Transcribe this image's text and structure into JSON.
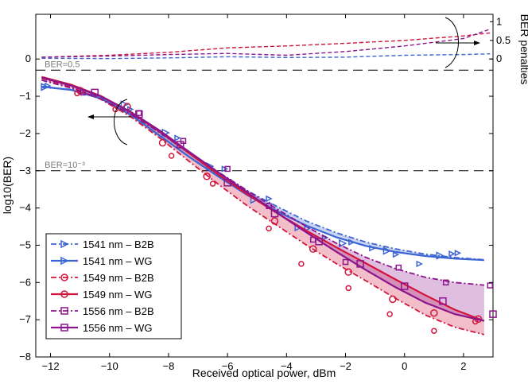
{
  "chart_data": {
    "type": "line",
    "xlabel": "Received optical power, dBm",
    "ylabel": "log10(BER)",
    "y2label": "BER penalties",
    "xlim": [
      -12.5,
      3
    ],
    "ylim": [
      -8,
      1.2
    ],
    "y2lim": [
      -0.58,
      1
    ],
    "xticks": [
      -12,
      -10,
      -8,
      -6,
      -4,
      -2,
      0,
      2
    ],
    "yticks": [
      0,
      -1,
      -2,
      -3,
      -4,
      -5,
      -6,
      -7,
      -8
    ],
    "y2ticks": [
      0,
      0.5,
      1
    ],
    "xtick_labels": [
      "−12",
      "−10",
      "−8",
      "−6",
      "−4",
      "−2",
      "0",
      "2"
    ],
    "ytick_labels": [
      "0",
      "−1",
      "−2",
      "−3",
      "−4",
      "−5",
      "−6",
      "−7",
      "−8"
    ],
    "y2tick_labels": [
      "0",
      "0.5",
      "1"
    ],
    "reference_lines": [
      {
        "y": -0.3,
        "label": "BER=0.5",
        "label_x": -12.2
      },
      {
        "y": -3.0,
        "label": "BER=10⁻³",
        "label_x": -12.2
      }
    ],
    "colors": {
      "c1541": "#3c64d2",
      "c1549": "#d2143c",
      "c1556": "#8c148c"
    },
    "series": [
      {
        "name": "1541 nm – B2B",
        "color_key": "c1541",
        "dash": "dashdot",
        "marker": "triangle-right",
        "x": [
          -12.3,
          -11.3,
          -10.3,
          -9.3,
          -8.3,
          -7.3,
          -6.3,
          -5.3,
          -4.3,
          -3.3,
          -2.3,
          -1.3,
          -0.3,
          0.7,
          1.7,
          2.7
        ],
        "y": [
          -0.76,
          -0.82,
          -1.02,
          -1.43,
          -1.98,
          -2.53,
          -3.05,
          -3.55,
          -3.97,
          -4.36,
          -4.67,
          -4.92,
          -5.1,
          -5.24,
          -5.33,
          -5.39
        ],
        "markers_x": [
          -12.1,
          -9.3,
          -7.7,
          -6.1,
          -4.6,
          -3.3,
          -2.7,
          -1.8,
          -1.1,
          -0.3,
          0.5,
          1.6,
          1.8
        ],
        "markers_y": [
          -0.72,
          -1.35,
          -2.12,
          -2.95,
          -3.75,
          -4.55,
          -4.79,
          -4.92,
          -5.08,
          -5.25,
          -5.5,
          -5.23,
          -5.21
        ]
      },
      {
        "name": "1541 nm – WG",
        "color_key": "c1541",
        "dash": "solid",
        "marker": "triangle-right",
        "x": [
          -12.3,
          -11.3,
          -10.3,
          -9.3,
          -8.3,
          -7.3,
          -6.3,
          -5.3,
          -4.3,
          -3.3,
          -2.3,
          -1.3,
          -0.3,
          0.7,
          1.7,
          2.7
        ],
        "y": [
          -0.74,
          -0.83,
          -1.06,
          -1.49,
          -2.06,
          -2.63,
          -3.16,
          -3.67,
          -4.1,
          -4.48,
          -4.79,
          -5.02,
          -5.18,
          -5.29,
          -5.36,
          -5.4
        ],
        "markers_x": [
          -12.2,
          -9.5,
          -8.1,
          -6.6,
          -5.1,
          -3.6,
          -2.1,
          -0.6,
          1.2
        ],
        "markers_y": [
          -0.75,
          -1.22,
          -1.98,
          -2.88,
          -3.78,
          -4.52,
          -4.95,
          -5.15,
          -5.28
        ]
      },
      {
        "name": "1549 nm – B2B",
        "color_key": "c1549",
        "dash": "dashdot",
        "marker": "circle",
        "x": [
          -12.3,
          -11.3,
          -10.3,
          -9.3,
          -8.3,
          -7.3,
          -6.3,
          -5.3,
          -4.3,
          -3.3,
          -2.3,
          -1.3,
          -0.3,
          0.7,
          1.7,
          2.7
        ],
        "y": [
          -0.52,
          -0.75,
          -1.08,
          -1.54,
          -2.12,
          -2.75,
          -3.37,
          -3.96,
          -4.48,
          -5.01,
          -5.5,
          -5.96,
          -6.43,
          -6.87,
          -7.2,
          -7.4
        ],
        "markers_x": [
          -11.1,
          -9.8,
          -7.9,
          -6.5,
          -4.6,
          -3.5,
          -1.9,
          -0.5,
          1.0,
          2.4
        ],
        "markers_y": [
          -0.92,
          -1.35,
          -2.6,
          -3.35,
          -4.55,
          -5.5,
          -6.15,
          -6.85,
          -7.3,
          -7.05
        ]
      },
      {
        "name": "1549 nm – WG",
        "color_key": "c1549",
        "dash": "solid",
        "marker": "circle",
        "x": [
          -12.3,
          -11.3,
          -10.3,
          -9.3,
          -8.3,
          -7.3,
          -6.3,
          -5.3,
          -4.3,
          -3.3,
          -2.3,
          -1.3,
          -0.3,
          0.7,
          1.7,
          2.7
        ],
        "y": [
          -0.48,
          -0.69,
          -0.99,
          -1.42,
          -1.95,
          -2.53,
          -3.11,
          -3.65,
          -4.15,
          -4.62,
          -5.06,
          -5.49,
          -5.92,
          -6.34,
          -6.73,
          -7.03
        ],
        "markers_x": [
          -11.0,
          -9.4,
          -8.2,
          -6.7,
          -4.4,
          -3.1,
          -1.9,
          -0.4,
          1.0,
          2.5
        ],
        "markers_y": [
          -0.85,
          -1.28,
          -2.25,
          -3.15,
          -4.35,
          -5.1,
          -5.72,
          -6.45,
          -6.82,
          -6.98
        ]
      },
      {
        "name": "1556 nm – B2B",
        "color_key": "c1556",
        "dash": "dashdot",
        "marker": "square",
        "x": [
          -12.3,
          -11.3,
          -10.3,
          -9.3,
          -8.3,
          -7.3,
          -6.3,
          -5.3,
          -4.3,
          -3.3,
          -2.3,
          -1.3,
          -0.3,
          0.7,
          1.7,
          2.7
        ],
        "y": [
          -0.57,
          -0.78,
          -1.07,
          -1.47,
          -1.97,
          -2.51,
          -3.04,
          -3.55,
          -4.04,
          -4.51,
          -4.95,
          -5.33,
          -5.63,
          -5.86,
          -6.0,
          -6.07
        ],
        "markers_x": [
          -10.9,
          -9.0,
          -7.5,
          -6.0,
          -4.6,
          -3.1,
          -2.0,
          -0.2,
          1.4,
          2.9
        ],
        "markers_y": [
          -0.9,
          -1.45,
          -2.2,
          -2.95,
          -3.95,
          -4.85,
          -5.45,
          -5.6,
          -6.0,
          -6.08
        ]
      },
      {
        "name": "1556 nm – WG",
        "color_key": "c1556",
        "dash": "solid",
        "marker": "square",
        "x": [
          -12.3,
          -11.3,
          -10.3,
          -9.3,
          -8.3,
          -7.3,
          -6.3,
          -5.3,
          -4.3,
          -3.3,
          -2.3,
          -1.3,
          -0.3,
          0.7,
          1.7,
          2.7
        ],
        "y": [
          -0.5,
          -0.71,
          -1.0,
          -1.41,
          -1.92,
          -2.49,
          -3.05,
          -3.6,
          -4.14,
          -4.67,
          -5.18,
          -5.67,
          -6.13,
          -6.54,
          -6.85,
          -7.03
        ],
        "markers_x": [
          -10.5,
          -9.0,
          -7.6,
          -6.0,
          -4.4,
          -2.9,
          -1.5,
          0.0,
          1.3,
          3.0
        ],
        "markers_y": [
          -0.9,
          -1.48,
          -2.3,
          -3.32,
          -4.15,
          -4.9,
          -5.5,
          -6.1,
          -6.5,
          -6.85
        ]
      }
    ],
    "penalties": [
      {
        "name": "1541 nm penalty",
        "color_key": "c1541",
        "x": [
          -12.3,
          -10,
          -8,
          -6,
          -4,
          -2,
          0,
          2,
          2.9
        ],
        "y": [
          0.02,
          0.01,
          0.03,
          0.06,
          0.04,
          0.05,
          0.1,
          0.12,
          0.14
        ]
      },
      {
        "name": "1549 nm penalty",
        "color_key": "c1549",
        "x": [
          -12.3,
          -10,
          -8,
          -6,
          -4,
          -2,
          0,
          2,
          2.9
        ],
        "y": [
          0.05,
          0.1,
          0.18,
          0.3,
          0.35,
          0.42,
          0.5,
          0.62,
          0.7
        ]
      },
      {
        "name": "1556 nm penalty",
        "color_key": "c1556",
        "x": [
          -12.3,
          -10,
          -8,
          -6,
          -4,
          -2,
          0,
          2,
          2.9
        ],
        "y": [
          0.05,
          0.08,
          0.12,
          0.15,
          0.1,
          0.2,
          0.35,
          0.55,
          0.8
        ]
      }
    ],
    "bands": [
      {
        "from": "1541 nm – B2B",
        "to": "1541 nm – WG",
        "color_key": "c1541"
      },
      {
        "from": "1549 nm – WG",
        "to": "1549 nm – B2B",
        "color_key": "c1549"
      },
      {
        "from": "1556 nm – B2B",
        "to": "1556 nm – WG",
        "color_key": "c1556"
      }
    ],
    "legend": {
      "position": "bottom-left"
    }
  }
}
